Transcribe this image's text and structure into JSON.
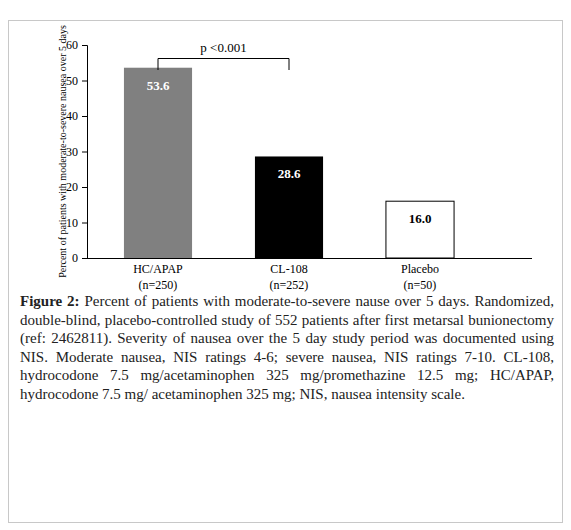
{
  "chart_data": {
    "type": "bar",
    "categories": [
      "HC/APAP\n(n=250)",
      "CL-108\n(n=252)",
      "Placebo\n(n=50)"
    ],
    "values": [
      53.6,
      28.6,
      16.0
    ],
    "value_labels": [
      "53.6",
      "28.6",
      "16.0"
    ],
    "colors": [
      "#808080",
      "#000000",
      "#ffffff"
    ],
    "data_labels": true,
    "y_label": "Percent of patients with moderate-to-severe nausea over 5 days",
    "ylim": [
      0,
      60
    ],
    "yticks": [
      0,
      10,
      20,
      30,
      40,
      50,
      60
    ],
    "annotations": [
      {
        "text": "p <0.001",
        "between": [
          0,
          1
        ]
      }
    ],
    "caption": {
      "label": "Figure 2:",
      "text": "Percent of patients with moderate-to-severe nause over 5 days. Randomized, double-blind, placebo-controlled study of 552 patients after first metarsal bunionectomy (ref: 2462811). Severity of nausea over the 5 day study period was documented using NIS. Moderate nausea, NIS ratings 4-6; severe nausea, NIS ratings 7-10. CL-108, hydrocodone 7.5 mg/acetaminophen 325 mg/promethazine 12.5 mg; HC/APAP, hydrocodone 7.5 mg/ acetaminophen 325 mg; NIS, nausea intensity scale."
    }
  }
}
